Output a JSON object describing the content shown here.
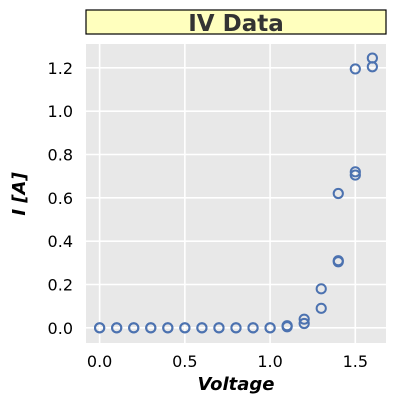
{
  "chart_data": {
    "type": "scatter",
    "title": "IV Data",
    "xlabel": "Voltage",
    "ylabel": "I [A]",
    "xlim": [
      -0.08,
      1.68
    ],
    "ylim": [
      -0.07,
      1.31
    ],
    "xticks": [
      0.0,
      0.5,
      1.0,
      1.5
    ],
    "xtick_labels": [
      "0.0",
      "0.5",
      "1.0",
      "1.5"
    ],
    "yticks": [
      0.0,
      0.2,
      0.4,
      0.6,
      0.8,
      1.0,
      1.2
    ],
    "ytick_labels": [
      "0.0",
      "0.2",
      "0.4",
      "0.6",
      "0.8",
      "1.0",
      "1.2"
    ],
    "grid": true,
    "marker": "open-circle",
    "colors": {
      "marker": "#4c72b0",
      "plot_bg": "#e8e8e8",
      "grid": "#ffffff",
      "title_bg": "#ffffbe",
      "text": "#333333"
    },
    "points": [
      {
        "x": 0.0,
        "y": 0.0
      },
      {
        "x": 0.0,
        "y": 0.0
      },
      {
        "x": 0.1,
        "y": 0.0
      },
      {
        "x": 0.1,
        "y": 0.0
      },
      {
        "x": 0.2,
        "y": 0.0
      },
      {
        "x": 0.2,
        "y": 0.0
      },
      {
        "x": 0.3,
        "y": 0.0
      },
      {
        "x": 0.3,
        "y": 0.0
      },
      {
        "x": 0.4,
        "y": 0.0
      },
      {
        "x": 0.4,
        "y": 0.0
      },
      {
        "x": 0.5,
        "y": 0.0
      },
      {
        "x": 0.5,
        "y": 0.0
      },
      {
        "x": 0.6,
        "y": 0.0
      },
      {
        "x": 0.6,
        "y": 0.0
      },
      {
        "x": 0.7,
        "y": 0.0
      },
      {
        "x": 0.7,
        "y": 0.0
      },
      {
        "x": 0.8,
        "y": 0.0
      },
      {
        "x": 0.8,
        "y": 0.0
      },
      {
        "x": 0.9,
        "y": 0.0
      },
      {
        "x": 0.9,
        "y": 0.0
      },
      {
        "x": 1.0,
        "y": 0.0
      },
      {
        "x": 1.0,
        "y": 0.0
      },
      {
        "x": 1.1,
        "y": 0.01
      },
      {
        "x": 1.1,
        "y": 0.005
      },
      {
        "x": 1.2,
        "y": 0.04
      },
      {
        "x": 1.2,
        "y": 0.02
      },
      {
        "x": 1.3,
        "y": 0.18
      },
      {
        "x": 1.3,
        "y": 0.09
      },
      {
        "x": 1.4,
        "y": 0.31
      },
      {
        "x": 1.4,
        "y": 0.305
      },
      {
        "x": 1.4,
        "y": 0.62
      },
      {
        "x": 1.5,
        "y": 0.72
      },
      {
        "x": 1.5,
        "y": 0.705
      },
      {
        "x": 1.5,
        "y": 1.195
      },
      {
        "x": 1.6,
        "y": 1.245
      },
      {
        "x": 1.6,
        "y": 1.205
      }
    ]
  }
}
